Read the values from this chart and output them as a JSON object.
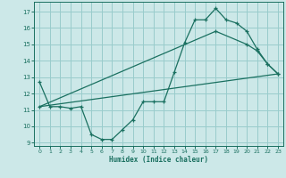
{
  "xlabel": "Humidex (Indice chaleur)",
  "bg_color": "#cce8e8",
  "grid_color": "#99cccc",
  "line_color": "#1a7060",
  "xlim": [
    -0.5,
    23.5
  ],
  "ylim": [
    8.8,
    17.6
  ],
  "yticks": [
    9,
    10,
    11,
    12,
    13,
    14,
    15,
    16,
    17
  ],
  "xticks": [
    0,
    1,
    2,
    3,
    4,
    5,
    6,
    7,
    8,
    9,
    10,
    11,
    12,
    13,
    14,
    15,
    16,
    17,
    18,
    19,
    20,
    21,
    22,
    23
  ],
  "line1_x": [
    0,
    1,
    2,
    3,
    4,
    5,
    6,
    7,
    8,
    9,
    10,
    11,
    12,
    13,
    14,
    15,
    16,
    17,
    18,
    19,
    20,
    21,
    22,
    23
  ],
  "line1_y": [
    12.7,
    11.2,
    11.2,
    11.1,
    11.2,
    9.5,
    9.2,
    9.2,
    9.8,
    10.4,
    11.5,
    11.5,
    11.5,
    13.3,
    15.1,
    16.5,
    16.5,
    17.2,
    16.5,
    16.3,
    15.8,
    14.7,
    13.8,
    13.2
  ],
  "line2_x": [
    0,
    23
  ],
  "line2_y": [
    11.2,
    13.2
  ],
  "line3_x": [
    0,
    17,
    20,
    21,
    22,
    23
  ],
  "line3_y": [
    11.2,
    15.8,
    15.0,
    14.6,
    13.8,
    13.2
  ]
}
